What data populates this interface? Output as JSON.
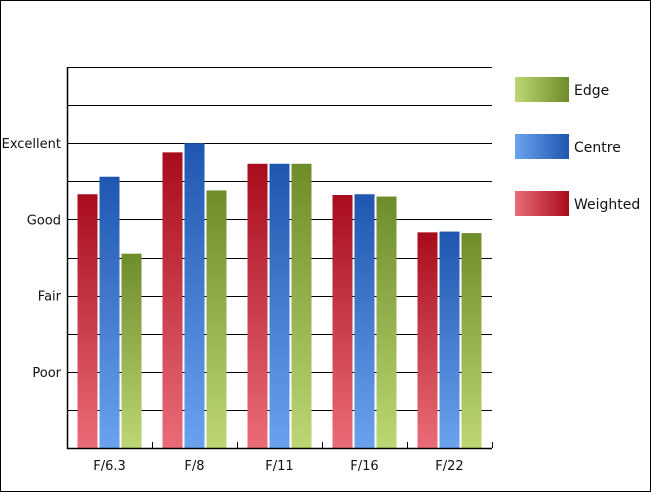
{
  "chart_data": {
    "type": "bar",
    "categories": [
      "F/6.3",
      "F/8",
      "F/11",
      "F/16",
      "F/22"
    ],
    "y_tick_labels": [
      "Poor",
      "Fair",
      "Good",
      "Excellent"
    ],
    "y_tick_values": [
      1,
      2,
      3,
      4
    ],
    "ylim": [
      0,
      5
    ],
    "grid": true,
    "legend_position": "right",
    "series": [
      {
        "name": "Weighted",
        "values": [
          3.33,
          3.88,
          3.73,
          3.32,
          2.83
        ]
      },
      {
        "name": "Centre",
        "values": [
          3.56,
          4.0,
          3.73,
          3.33,
          2.84
        ]
      },
      {
        "name": "Edge",
        "values": [
          2.55,
          3.38,
          3.73,
          3.3,
          2.82
        ]
      }
    ],
    "legend_order": [
      "Edge",
      "Centre",
      "Weighted"
    ],
    "colors": {
      "Weighted": {
        "dark": "#a80c1c",
        "light": "#ea6c78"
      },
      "Centre": {
        "dark": "#1f56b0",
        "light": "#6ba2ee"
      },
      "Edge": {
        "dark": "#6f8c2a",
        "light": "#bcd774"
      }
    }
  }
}
